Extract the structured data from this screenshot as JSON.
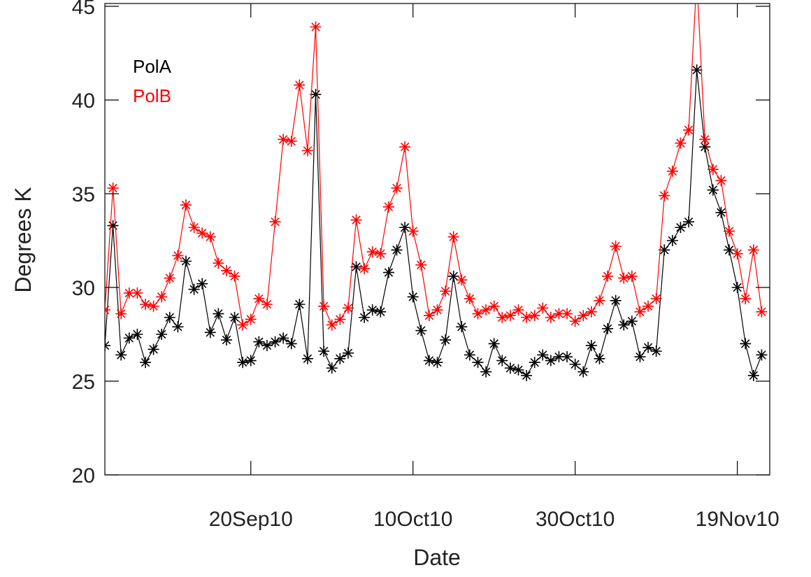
{
  "chart_data": {
    "type": "line",
    "x_label": "Date",
    "y_label": "Degrees K",
    "x": [
      "2010-09-02",
      "2010-09-03",
      "2010-09-04",
      "2010-09-05",
      "2010-09-06",
      "2010-09-07",
      "2010-09-08",
      "2010-09-09",
      "2010-09-10",
      "2010-09-11",
      "2010-09-12",
      "2010-09-13",
      "2010-09-14",
      "2010-09-15",
      "2010-09-16",
      "2010-09-17",
      "2010-09-18",
      "2010-09-19",
      "2010-09-20",
      "2010-09-21",
      "2010-09-22",
      "2010-09-23",
      "2010-09-24",
      "2010-09-25",
      "2010-09-26",
      "2010-09-27",
      "2010-09-28",
      "2010-09-29",
      "2010-09-30",
      "2010-10-01",
      "2010-10-02",
      "2010-10-03",
      "2010-10-04",
      "2010-10-05",
      "2010-10-06",
      "2010-10-07",
      "2010-10-08",
      "2010-10-09",
      "2010-10-10",
      "2010-10-11",
      "2010-10-12",
      "2010-10-13",
      "2010-10-14",
      "2010-10-15",
      "2010-10-16",
      "2010-10-17",
      "2010-10-18",
      "2010-10-19",
      "2010-10-20",
      "2010-10-21",
      "2010-10-22",
      "2010-10-23",
      "2010-10-24",
      "2010-10-25",
      "2010-10-26",
      "2010-10-27",
      "2010-10-28",
      "2010-10-29",
      "2010-10-30",
      "2010-10-31",
      "2010-11-01",
      "2010-11-02",
      "2010-11-03",
      "2010-11-04",
      "2010-11-05",
      "2010-11-06",
      "2010-11-07",
      "2010-11-08",
      "2010-11-09",
      "2010-11-10",
      "2010-11-11",
      "2010-11-12",
      "2010-11-13",
      "2010-11-14",
      "2010-11-15",
      "2010-11-16",
      "2010-11-17",
      "2010-11-18",
      "2010-11-19",
      "2010-11-20",
      "2010-11-21",
      "2010-11-22"
    ],
    "series": [
      {
        "name": "PolA",
        "color": "#000000",
        "values": [
          26.9,
          33.3,
          26.4,
          27.3,
          27.5,
          26.0,
          26.7,
          27.5,
          28.4,
          27.9,
          31.4,
          29.9,
          30.2,
          27.6,
          28.6,
          27.2,
          28.4,
          26.0,
          26.1,
          27.1,
          26.9,
          27.1,
          27.3,
          27.0,
          29.1,
          26.2,
          40.3,
          26.6,
          25.7,
          26.2,
          26.5,
          31.1,
          28.4,
          28.8,
          28.7,
          30.8,
          32.0,
          33.2,
          29.5,
          27.7,
          26.1,
          26.0,
          27.2,
          30.6,
          27.9,
          26.4,
          26.0,
          25.5,
          27.0,
          26.1,
          25.7,
          25.6,
          25.3,
          26.0,
          26.4,
          26.1,
          26.3,
          26.3,
          25.9,
          25.5,
          26.9,
          26.2,
          27.8,
          29.3,
          28.0,
          28.2,
          26.3,
          26.8,
          26.6,
          32.0,
          32.5,
          33.2,
          33.5,
          41.6,
          37.5,
          35.2,
          34.0,
          32.0,
          30.0,
          27.0,
          25.3,
          26.4
        ]
      },
      {
        "name": "PolB",
        "color": "#ff0000",
        "values": [
          28.8,
          35.3,
          28.6,
          29.7,
          29.7,
          29.1,
          29.0,
          29.5,
          30.5,
          31.7,
          34.4,
          33.2,
          32.9,
          32.7,
          31.3,
          30.9,
          30.6,
          28.0,
          28.3,
          29.4,
          29.1,
          33.5,
          37.9,
          37.8,
          40.8,
          37.3,
          43.9,
          29.0,
          28.0,
          28.3,
          28.9,
          33.6,
          31.0,
          31.9,
          31.8,
          34.3,
          35.3,
          37.5,
          33.0,
          31.2,
          28.5,
          28.8,
          29.8,
          32.7,
          30.4,
          29.4,
          28.6,
          28.8,
          29.0,
          28.4,
          28.5,
          28.8,
          28.4,
          28.5,
          28.9,
          28.4,
          28.6,
          28.6,
          28.2,
          28.5,
          28.7,
          29.3,
          30.6,
          32.2,
          30.5,
          30.6,
          28.7,
          29.0,
          29.4,
          34.9,
          36.2,
          37.7,
          38.4,
          46.5,
          37.9,
          36.3,
          35.7,
          33.0,
          31.8,
          29.4,
          32.0,
          28.7
        ]
      }
    ],
    "xlim": [
      "2010-09-02",
      "2010-11-23"
    ],
    "xticks": [
      {
        "value": "2010-09-20",
        "label": "20Sep10"
      },
      {
        "value": "2010-10-10",
        "label": "10Oct10"
      },
      {
        "value": "2010-10-30",
        "label": "30Oct10"
      },
      {
        "value": "2010-11-19",
        "label": "19Nov10"
      }
    ],
    "ylim": [
      20,
      45.15
    ],
    "yticks": [
      20,
      25,
      30,
      35,
      40,
      45
    ],
    "legend": "upper left",
    "marker": "asterisk"
  }
}
